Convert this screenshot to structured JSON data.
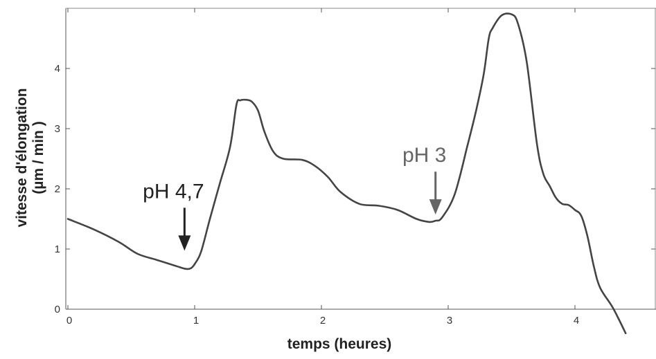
{
  "chart_data": {
    "type": "line",
    "title": "",
    "xlabel": "temps (heures)",
    "ylabel_line1": "vitesse d'élongation",
    "ylabel_line2": "(µm / min )",
    "xlim": [
      0,
      4.6
    ],
    "ylim": [
      0,
      5
    ],
    "xticks": [
      0,
      1,
      2,
      3,
      4
    ],
    "yticks": [
      0,
      1,
      2,
      3,
      4
    ],
    "grid": false,
    "legend": "none",
    "line_color": "#444444",
    "series": [
      {
        "x": [
          0.0,
          0.2,
          0.4,
          0.55,
          0.7,
          0.85,
          0.93,
          0.97,
          1.0,
          1.05,
          1.12,
          1.2,
          1.28,
          1.33,
          1.36,
          1.4,
          1.45,
          1.5,
          1.55,
          1.62,
          1.7,
          1.85,
          1.95,
          2.05,
          2.15,
          2.3,
          2.45,
          2.6,
          2.75,
          2.85,
          2.9,
          2.95,
          3.05,
          3.15,
          3.22,
          3.28,
          3.32,
          3.35,
          3.42,
          3.5,
          3.55,
          3.62,
          3.7,
          3.75,
          3.8,
          3.85,
          3.9,
          3.95,
          4.0,
          4.05,
          4.1,
          4.15,
          4.2,
          4.3,
          4.4
        ],
        "y": [
          1.5,
          1.33,
          1.12,
          0.92,
          0.82,
          0.72,
          0.67,
          0.68,
          0.75,
          0.95,
          1.5,
          2.1,
          2.7,
          3.4,
          3.47,
          3.48,
          3.45,
          3.3,
          2.95,
          2.62,
          2.5,
          2.48,
          2.38,
          2.2,
          1.95,
          1.75,
          1.72,
          1.65,
          1.5,
          1.45,
          1.47,
          1.52,
          1.9,
          2.7,
          3.3,
          3.9,
          4.5,
          4.67,
          4.88,
          4.9,
          4.75,
          4.1,
          2.75,
          2.25,
          2.05,
          1.85,
          1.75,
          1.73,
          1.65,
          1.55,
          1.2,
          0.7,
          0.35,
          0.02,
          -0.4
        ]
      }
    ],
    "annotations": [
      {
        "label": "pH 4,7",
        "x": 0.92,
        "y": 0.95,
        "color": "#222222"
      },
      {
        "label": "pH 3",
        "x": 2.9,
        "y": 1.55,
        "color": "#666666"
      }
    ]
  }
}
